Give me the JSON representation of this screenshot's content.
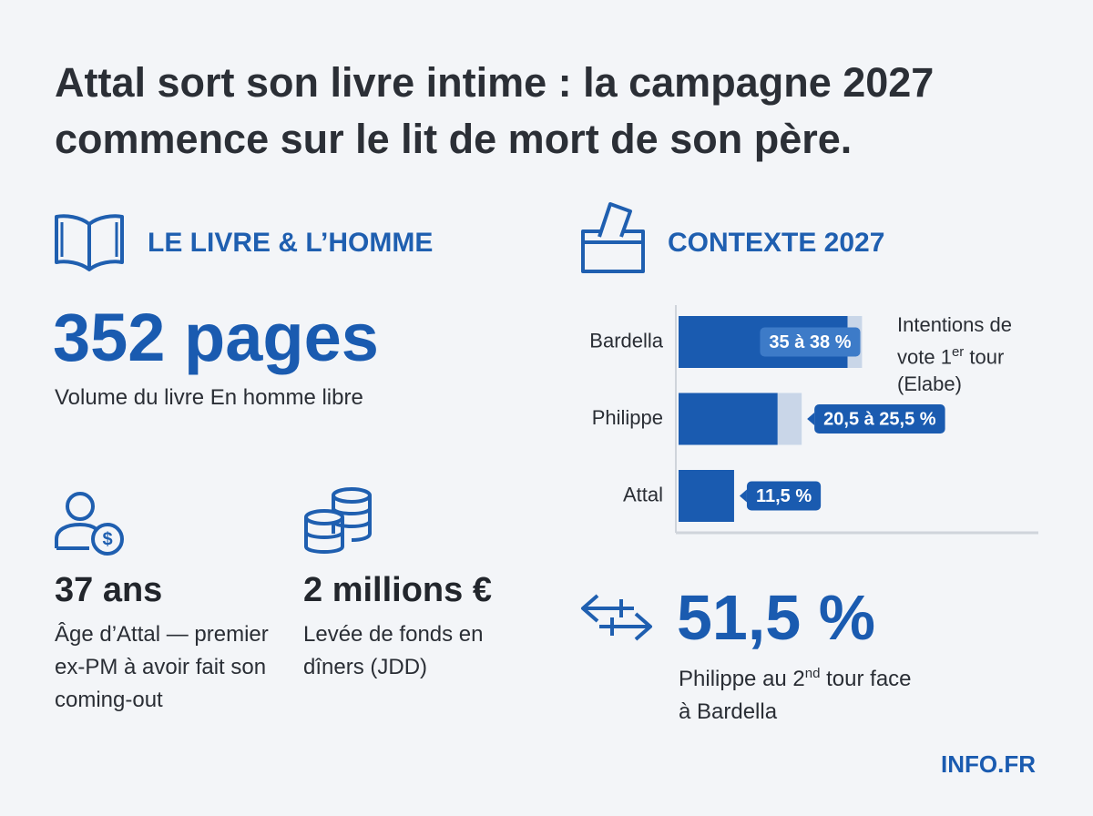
{
  "header": {
    "title": "Attal sort son livre intime : la campagne 2027 commence sur le lit de mort de son père."
  },
  "book": {
    "heading": "LE LIVRE & L’HOMME",
    "headline": "352 pages",
    "caption": "Volume du livre En homme libre",
    "stats": [
      {
        "value": "37 ans",
        "caption": "Âge d’Attal — premier ex-PM à avoir fait son coming-out"
      },
      {
        "value": "2 millions €",
        "caption": "Levée de fonds en dîners (JDD)"
      }
    ]
  },
  "context": {
    "heading": "CONTEXTE 2027",
    "chart": {
      "type": "bar",
      "categories": [
        "Bardella",
        "Philippe",
        "Attal"
      ],
      "values": [
        35,
        20.5,
        11.5
      ],
      "upper": [
        38,
        25.5,
        null
      ],
      "value_labels": [
        "35 à 38 %",
        "20,5 à 25,5 %",
        "11,5 %"
      ],
      "color": "#1a5bb0",
      "range_color": "#c9d6e8",
      "legend": {
        "text": "Intentions de vote 1",
        "sup": "er",
        "after": " tour (Elabe)"
      }
    },
    "runoff": {
      "value": "51,5 %",
      "caption": "Philippe au 2",
      "sup": "nd",
      "after": " tour face à Bardella"
    }
  },
  "footer": {
    "brand": "INFO.FR"
  }
}
